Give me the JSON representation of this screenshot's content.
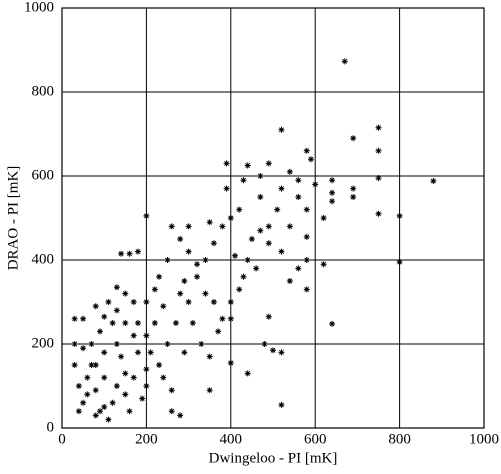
{
  "chart_data": {
    "type": "scatter",
    "xlabel": "Dwingeloo - PI [mK]",
    "ylabel": "DRAO - PI [mK]",
    "xlim": [
      0,
      1000
    ],
    "ylim": [
      0,
      1000
    ],
    "xticks": [
      0,
      200,
      400,
      600,
      800,
      1000
    ],
    "yticks": [
      0,
      200,
      400,
      600,
      800,
      1000
    ],
    "grid": true,
    "color": "#000000",
    "x": [
      670,
      750,
      690,
      750,
      520,
      580,
      590,
      880,
      800,
      800,
      750,
      750,
      690,
      690,
      640,
      640,
      640,
      620,
      620,
      640,
      520,
      500,
      520,
      440,
      400,
      200,
      180,
      160,
      130,
      280,
      30,
      50,
      80,
      100,
      140,
      300,
      350,
      440,
      490,
      540,
      560,
      470,
      520,
      470,
      430,
      390,
      390,
      420,
      400,
      560,
      580,
      510,
      580,
      580,
      560,
      540,
      580,
      490,
      490,
      450,
      440,
      460,
      420,
      400,
      400,
      490,
      480,
      380,
      360,
      340,
      320,
      320,
      300,
      280,
      260,
      250,
      230,
      220,
      240,
      220,
      200,
      200,
      180,
      200,
      200,
      180,
      170,
      150,
      150,
      150,
      150,
      160,
      130,
      130,
      130,
      120,
      110,
      100,
      100,
      100,
      90,
      80,
      80,
      80,
      70,
      60,
      50,
      40,
      40,
      30,
      30,
      50,
      60,
      70,
      90,
      120,
      110,
      140,
      170,
      170,
      190,
      210,
      230,
      240,
      260,
      250,
      270,
      280,
      290,
      300,
      310,
      330,
      350,
      370,
      340,
      360,
      380,
      410,
      430,
      470,
      520,
      540,
      600,
      350,
      260,
      290
    ],
    "y": [
      873,
      715,
      690,
      660,
      710,
      660,
      640,
      588,
      505,
      395,
      595,
      510,
      570,
      550,
      590,
      560,
      540,
      500,
      390,
      248,
      55,
      185,
      180,
      130,
      155,
      505,
      420,
      415,
      335,
      30,
      260,
      260,
      290,
      265,
      415,
      480,
      490,
      625,
      630,
      610,
      590,
      600,
      570,
      550,
      590,
      630,
      570,
      520,
      500,
      550,
      520,
      520,
      455,
      400,
      380,
      350,
      330,
      480,
      440,
      450,
      400,
      380,
      330,
      300,
      260,
      265,
      200,
      260,
      300,
      320,
      390,
      360,
      420,
      450,
      480,
      400,
      360,
      330,
      290,
      250,
      300,
      220,
      250,
      140,
      100,
      180,
      300,
      320,
      250,
      130,
      80,
      40,
      280,
      200,
      100,
      60,
      20,
      180,
      120,
      50,
      230,
      150,
      90,
      30,
      200,
      120,
      60,
      40,
      100,
      150,
      200,
      190,
      80,
      150,
      40,
      250,
      300,
      170,
      220,
      120,
      70,
      180,
      150,
      120,
      40,
      200,
      250,
      320,
      350,
      300,
      250,
      200,
      170,
      230,
      400,
      440,
      480,
      410,
      360,
      470,
      420,
      480,
      580,
      90,
      90,
      180
    ]
  }
}
